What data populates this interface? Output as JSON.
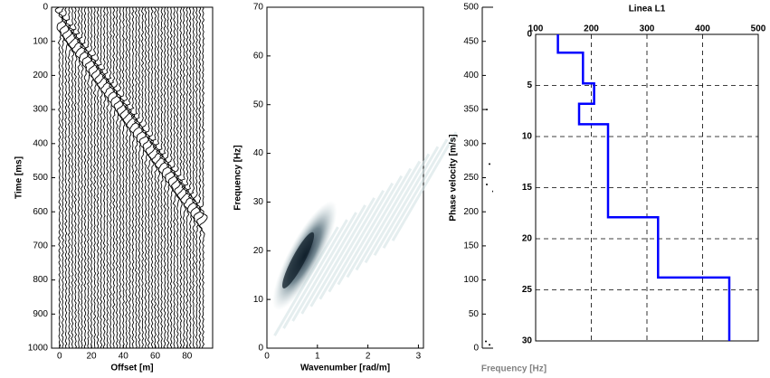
{
  "chart_data": [
    {
      "type": "wiggle",
      "xlabel": "Offset [m]",
      "ylabel": "Time [ms]",
      "xlim": [
        -5,
        96
      ],
      "xticks": [
        0,
        20,
        40,
        60,
        80
      ],
      "ylim": [
        0,
        1000
      ],
      "yticks": [
        0,
        100,
        200,
        300,
        400,
        500,
        600,
        700,
        800,
        900,
        1000
      ],
      "y_inverted": true
    },
    {
      "type": "heatmap",
      "xlabel": "Wavenumber [rad/m]",
      "ylabel": "Frequency [Hz]",
      "xlim": [
        0,
        3.1
      ],
      "xticks": [
        0,
        1,
        2,
        3
      ],
      "ylim": [
        0,
        70
      ],
      "yticks": [
        0,
        10,
        20,
        30,
        40,
        50,
        60,
        70
      ]
    },
    {
      "type": "dispersion",
      "xlabel": "Frequency [Hz]",
      "ylabel": "Phase velocity [m/s]",
      "ylim": [
        0,
        500
      ],
      "yticks": [
        0,
        50,
        100,
        150,
        200,
        250,
        300,
        350,
        400,
        450,
        500
      ]
    },
    {
      "type": "line",
      "title": "Linea L1",
      "xlim": [
        100,
        500
      ],
      "xticks": [
        100,
        200,
        300,
        400,
        500
      ],
      "ylim": [
        0,
        30
      ],
      "yticks": [
        0,
        5,
        10,
        15,
        20,
        25,
        30
      ],
      "y_inverted": true,
      "grid": true,
      "series": [
        {
          "color": "#0000ff",
          "x": [
            140,
            140,
            185,
            185,
            205,
            205,
            178,
            178,
            230,
            230,
            320,
            320,
            448,
            448
          ],
          "y": [
            0,
            1.8,
            1.8,
            4.8,
            4.8,
            6.8,
            6.8,
            8.8,
            8.8,
            17.9,
            17.9,
            23.8,
            23.8,
            30
          ]
        }
      ]
    }
  ]
}
